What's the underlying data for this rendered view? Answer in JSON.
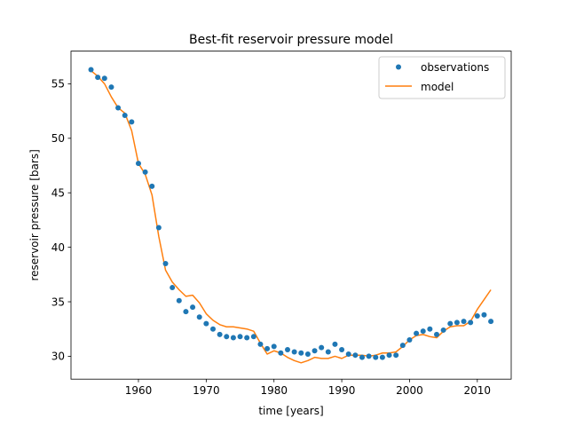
{
  "chart_data": {
    "type": "line",
    "title": "Best-fit reservoir pressure model",
    "xlabel": "time [years]",
    "ylabel": "reservoir pressure [bars]",
    "xlim": [
      1950.05,
      2015.0
    ],
    "ylim": [
      27.9,
      58.0
    ],
    "xticks": [
      1960,
      1970,
      1980,
      1990,
      2000,
      2010
    ],
    "yticks": [
      30,
      35,
      40,
      45,
      50,
      55
    ],
    "grid": false,
    "legend_position": "top-right",
    "colors": {
      "observations": "#1f77b4",
      "model": "#ff7f0e"
    },
    "series": [
      {
        "name": "observations",
        "style": "markers",
        "x": [
          1953,
          1954,
          1955,
          1956,
          1957,
          1958,
          1959,
          1960,
          1961,
          1962,
          1963,
          1964,
          1965,
          1966,
          1967,
          1968,
          1969,
          1970,
          1971,
          1972,
          1973,
          1974,
          1975,
          1976,
          1977,
          1978,
          1979,
          1980,
          1981,
          1982,
          1983,
          1984,
          1985,
          1986,
          1987,
          1988,
          1989,
          1990,
          1991,
          1992,
          1993,
          1994,
          1995,
          1996,
          1997,
          1998,
          1999,
          2000,
          2001,
          2002,
          2003,
          2004,
          2005,
          2006,
          2007,
          2008,
          2009,
          2010,
          2011,
          2012
        ],
        "y": [
          56.3,
          55.6,
          55.5,
          54.7,
          52.8,
          52.1,
          51.5,
          47.7,
          46.9,
          45.6,
          41.8,
          38.5,
          36.3,
          35.1,
          34.1,
          34.5,
          33.6,
          33.0,
          32.5,
          32.0,
          31.8,
          31.7,
          31.8,
          31.7,
          31.8,
          31.1,
          30.7,
          30.9,
          30.3,
          30.6,
          30.4,
          30.3,
          30.2,
          30.5,
          30.8,
          30.4,
          31.1,
          30.6,
          30.2,
          30.1,
          29.9,
          30.0,
          29.9,
          29.9,
          30.1,
          30.1,
          31.0,
          31.5,
          32.1,
          32.3,
          32.5,
          32.0,
          32.4,
          33.0,
          33.1,
          33.2,
          33.1,
          33.7,
          33.8,
          33.2
        ]
      },
      {
        "name": "model",
        "style": "line",
        "x": [
          1953,
          1954,
          1955,
          1956,
          1957,
          1958,
          1959,
          1960,
          1961,
          1962,
          1963,
          1964,
          1965,
          1966,
          1967,
          1968,
          1969,
          1970,
          1971,
          1972,
          1973,
          1974,
          1975,
          1976,
          1977,
          1978,
          1979,
          1980,
          1981,
          1982,
          1983,
          1984,
          1985,
          1986,
          1987,
          1988,
          1989,
          1990,
          1991,
          1992,
          1993,
          1994,
          1995,
          1996,
          1997,
          1998,
          1999,
          2000,
          2001,
          2002,
          2003,
          2004,
          2005,
          2006,
          2007,
          2008,
          2009,
          2010,
          2011,
          2012
        ],
        "y": [
          56.2,
          55.7,
          55.0,
          53.8,
          52.8,
          52.3,
          50.7,
          47.7,
          46.7,
          44.8,
          41.0,
          37.9,
          36.8,
          36.1,
          35.5,
          35.6,
          34.9,
          33.9,
          33.3,
          32.9,
          32.7,
          32.7,
          32.6,
          32.5,
          32.3,
          31.2,
          30.2,
          30.5,
          30.3,
          29.9,
          29.6,
          29.4,
          29.6,
          29.9,
          29.8,
          29.8,
          30.0,
          29.8,
          30.1,
          30.1,
          30.1,
          30.0,
          30.1,
          30.3,
          30.3,
          30.4,
          30.9,
          31.5,
          31.9,
          32.0,
          31.8,
          31.7,
          32.3,
          32.7,
          32.8,
          32.8,
          33.2,
          34.3,
          35.2,
          36.1
        ]
      }
    ]
  }
}
